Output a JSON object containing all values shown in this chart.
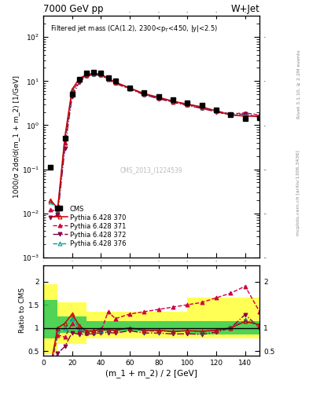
{
  "title_top": "7000 GeV pp",
  "title_right": "W+Jet",
  "annotation": "Filtered jet mass (CA(1.2), 2300<p_{T}<450, |y|<2.5)",
  "watermark": "CMS_2013_I1224539",
  "rivet_text": "Rivet 3.1.10, ≥ 2.2M events",
  "arxiv_text": "mcplots.cern.ch [arXiv:1306.3436]",
  "ylabel_main": "1000/σ 2dσ/d(m_1 + m_2) [1/GeV]",
  "ylabel_ratio": "Ratio to CMS",
  "xlabel": "(m_1 + m_2) / 2 [GeV]",
  "xlim": [
    0,
    150
  ],
  "ylim_main": [
    0.001,
    300
  ],
  "ylim_ratio": [
    0.4,
    2.35
  ],
  "cms_x": [
    5,
    10,
    15,
    20,
    25,
    30,
    35,
    40,
    45,
    50,
    60,
    70,
    80,
    90,
    100,
    110,
    120,
    130,
    140,
    150
  ],
  "cms_y": [
    0.11,
    0.013,
    0.5,
    5.0,
    11.0,
    15.0,
    16.0,
    15.0,
    12.0,
    10.0,
    7.0,
    5.5,
    4.5,
    3.8,
    3.2,
    2.8,
    2.2,
    1.7,
    1.4,
    1.5
  ],
  "py370_x": [
    5,
    10,
    15,
    20,
    25,
    30,
    35,
    40,
    45,
    50,
    60,
    70,
    80,
    90,
    100,
    110,
    120,
    130,
    140,
    150
  ],
  "py370_y": [
    0.02,
    0.013,
    0.55,
    6.5,
    11.5,
    14.0,
    15.0,
    14.5,
    11.5,
    9.5,
    7.0,
    5.2,
    4.3,
    3.5,
    3.0,
    2.6,
    2.1,
    1.7,
    1.6,
    1.6
  ],
  "py371_x": [
    5,
    10,
    15,
    20,
    25,
    30,
    35,
    40,
    45,
    50,
    60,
    70,
    80,
    90,
    100,
    110,
    120,
    130,
    140,
    150
  ],
  "py371_y": [
    0.012,
    0.011,
    0.4,
    5.5,
    10.5,
    13.5,
    14.5,
    14.0,
    11.2,
    9.2,
    6.8,
    5.0,
    4.1,
    3.4,
    2.9,
    2.5,
    2.1,
    1.8,
    1.9,
    1.7
  ],
  "py372_x": [
    5,
    10,
    15,
    20,
    25,
    30,
    35,
    40,
    45,
    50,
    60,
    70,
    80,
    90,
    100,
    110,
    120,
    130,
    140,
    150
  ],
  "py372_y": [
    0.008,
    0.009,
    0.3,
    4.5,
    9.5,
    13.0,
    14.0,
    13.5,
    10.8,
    8.9,
    6.6,
    4.9,
    4.0,
    3.3,
    2.8,
    2.4,
    2.0,
    1.7,
    1.8,
    1.5
  ],
  "py376_x": [
    5,
    10,
    15,
    20,
    25,
    30,
    35,
    40,
    45,
    50,
    60,
    70,
    80,
    90,
    100,
    110,
    120,
    130,
    140,
    150
  ],
  "py376_y": [
    0.018,
    0.012,
    0.5,
    6.0,
    11.0,
    13.8,
    14.8,
    14.2,
    11.4,
    9.4,
    7.0,
    5.1,
    4.2,
    3.5,
    3.0,
    2.55,
    2.1,
    1.72,
    1.65,
    1.6
  ],
  "ratio370_y": [
    0.18,
    1.0,
    1.1,
    1.3,
    1.05,
    0.93,
    0.94,
    0.97,
    0.96,
    0.95,
    1.0,
    0.95,
    0.95,
    0.92,
    0.94,
    0.93,
    0.95,
    1.0,
    1.14,
    1.07
  ],
  "ratio371_y": [
    0.11,
    0.85,
    0.8,
    1.1,
    0.95,
    0.9,
    0.91,
    0.93,
    1.35,
    1.2,
    1.3,
    1.35,
    1.4,
    1.45,
    1.5,
    1.55,
    1.65,
    1.75,
    1.9,
    1.35
  ],
  "ratio372_y": [
    0.07,
    0.45,
    0.6,
    0.9,
    0.86,
    0.87,
    0.875,
    0.9,
    0.9,
    0.89,
    0.94,
    0.89,
    0.89,
    0.87,
    0.875,
    0.86,
    0.91,
    1.0,
    1.29,
    1.0
  ],
  "ratio376_y": [
    0.16,
    0.92,
    1.0,
    1.2,
    1.0,
    0.92,
    0.925,
    0.95,
    0.95,
    0.94,
    1.0,
    0.927,
    0.933,
    0.921,
    0.938,
    0.911,
    0.955,
    1.01,
    1.18,
    1.07
  ],
  "band_x": [
    0,
    10,
    10,
    30,
    30,
    50,
    50,
    60,
    60,
    80,
    80,
    100,
    100,
    150
  ],
  "band_green_low": [
    0.77,
    0.77,
    0.9,
    0.9,
    0.93,
    0.93,
    0.93,
    0.93,
    0.93,
    0.93,
    0.93,
    0.93,
    0.86,
    0.86
  ],
  "band_green_high": [
    1.6,
    1.6,
    1.25,
    1.25,
    1.15,
    1.15,
    1.15,
    1.15,
    1.15,
    1.15,
    1.15,
    1.15,
    1.15,
    1.15
  ],
  "band_yellow_low": [
    0.43,
    0.43,
    0.65,
    0.65,
    0.77,
    0.77,
    0.77,
    0.77,
    0.77,
    0.77,
    0.77,
    0.77,
    0.77,
    0.77
  ],
  "band_yellow_high": [
    1.95,
    1.95,
    1.55,
    1.55,
    1.35,
    1.35,
    1.35,
    1.35,
    1.35,
    1.35,
    1.35,
    1.35,
    1.65,
    1.65
  ],
  "color_370": "#cc0000",
  "color_371": "#cc0044",
  "color_372": "#880044",
  "color_376": "#009999",
  "color_green": "#33cc55",
  "color_yellow": "#ffff55",
  "bg_color": "#f8f8f8"
}
